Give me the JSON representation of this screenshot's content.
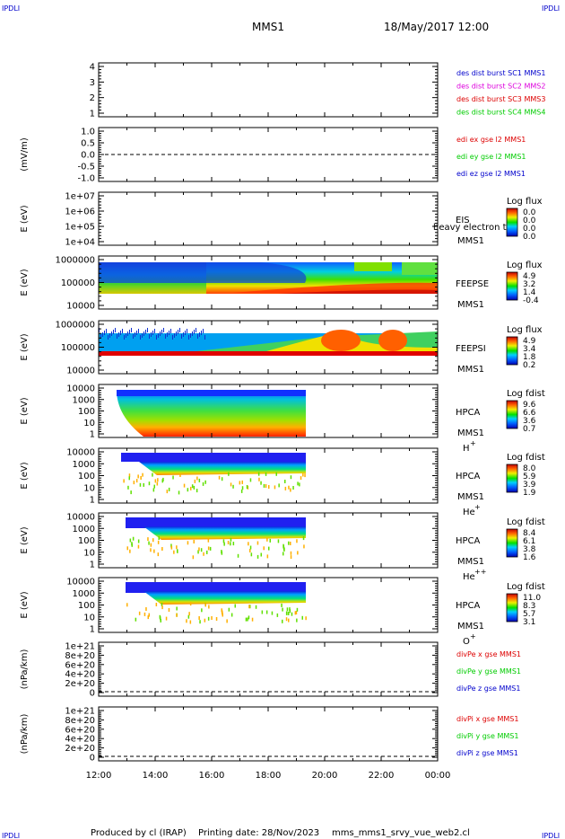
{
  "header": {
    "corner_tl": "IPDLI",
    "corner_tr": "IPDLI",
    "spacecraft": "MMS1",
    "datetime": "18/May/2017 12:00"
  },
  "footer": {
    "produced_by": "Produced by cl (IRAP)",
    "printing_date": "Printing date: 28/Nov/2023",
    "filename": "mms_mms1_srvy_vue_web2.cl",
    "corner_bl": "IPDLI",
    "corner_br": "IPDLI"
  },
  "x_ticks": [
    "12:00",
    "14:00",
    "16:00",
    "18:00",
    "20:00",
    "22:00",
    "00:00"
  ],
  "colors": {
    "red": "#dd0000",
    "magenta": "#dd00dd",
    "green": "#00cc00",
    "blue": "#0000cc"
  },
  "chart_data": [
    {
      "type": "line",
      "id": "bursts",
      "yticks": [
        "4",
        "3",
        "2",
        "1"
      ],
      "ylabel": "",
      "legend": [
        {
          "text": "des dist burst SC1 MMS1",
          "color": "blue"
        },
        {
          "text": "des dist burst SC2 MMS2",
          "color": "magenta"
        },
        {
          "text": "des dist burst SC3 MMS3",
          "color": "red"
        },
        {
          "text": "des dist burst SC4 MMS4",
          "color": "green"
        }
      ]
    },
    {
      "type": "line",
      "id": "edi",
      "yticks": [
        "1.0",
        "0.5",
        "0.0",
        "-0.5",
        "-1.0"
      ],
      "ylabel": "(mV/m)",
      "legend": [
        {
          "text": "edi ex gse l2 MMS1",
          "color": "red"
        },
        {
          "text": "edi ey gse l2 MMS1",
          "color": "green"
        },
        {
          "text": "edi ez gse l2 MMS1",
          "color": "blue"
        }
      ]
    },
    {
      "type": "heatmap",
      "id": "eis",
      "yticks": [
        "1e+07",
        "1e+06",
        "1e+05",
        "1e+04"
      ],
      "ylabel": "E (eV)",
      "label1": "EIS",
      "label2": "MMS1",
      "overlay": "heavy electron to",
      "cb_title": "Log flux",
      "cb_values": [
        "0.0",
        "0.0",
        "0.0",
        "0.0"
      ]
    },
    {
      "type": "heatmap",
      "id": "feepse",
      "yticks": [
        "1000000",
        "100000",
        "10000"
      ],
      "ylabel": "E (eV)",
      "label1": "FEEPSE",
      "label2": "MMS1",
      "cb_title": "Log flux",
      "cb_values": [
        "4.9",
        "3.2",
        "1.4",
        "-0.4"
      ]
    },
    {
      "type": "heatmap",
      "id": "feepsi",
      "yticks": [
        "1000000",
        "100000",
        "10000"
      ],
      "ylabel": "E (eV)",
      "label1": "FEEPSI",
      "label2": "MMS1",
      "cb_title": "Log flux",
      "cb_values": [
        "4.9",
        "3.4",
        "1.8",
        "0.2"
      ]
    },
    {
      "type": "heatmap",
      "id": "hpca_h",
      "yticks": [
        "10000",
        "1000",
        "100",
        "10",
        "1"
      ],
      "ylabel": "E (eV)",
      "label1": "HPCA",
      "label2": "MMS1",
      "species": "H",
      "species_sup": "+",
      "cb_title": "Log fdist",
      "cb_values": [
        "9.6",
        "6.6",
        "3.6",
        "0.7"
      ]
    },
    {
      "type": "heatmap",
      "id": "hpca_he",
      "yticks": [
        "10000",
        "1000",
        "100",
        "10",
        "1"
      ],
      "ylabel": "E (eV)",
      "label1": "HPCA",
      "label2": "MMS1",
      "species": "He",
      "species_sup": "+",
      "cb_title": "Log fdist",
      "cb_values": [
        "8.0",
        "5.9",
        "3.9",
        "1.9"
      ]
    },
    {
      "type": "heatmap",
      "id": "hpca_hepp",
      "yticks": [
        "10000",
        "1000",
        "100",
        "10",
        "1"
      ],
      "ylabel": "E (eV)",
      "label1": "HPCA",
      "label2": "MMS1",
      "species": "He",
      "species_sup": "++",
      "cb_title": "Log fdist",
      "cb_values": [
        "8.4",
        "6.1",
        "3.8",
        "1.6"
      ]
    },
    {
      "type": "heatmap",
      "id": "hpca_o",
      "yticks": [
        "10000",
        "1000",
        "100",
        "10",
        "1"
      ],
      "ylabel": "E (eV)",
      "label1": "HPCA",
      "label2": "MMS1",
      "species": "O",
      "species_sup": "+",
      "cb_title": "Log fdist",
      "cb_values": [
        "11.0",
        "8.3",
        "5.7",
        "3.1"
      ]
    },
    {
      "type": "line",
      "id": "divpe",
      "yticks": [
        "1e+21",
        "8e+20",
        "6e+20",
        "4e+20",
        "2e+20",
        "0"
      ],
      "ylabel": "(nPa/km)",
      "legend": [
        {
          "text": "divPe x gse MMS1",
          "color": "red"
        },
        {
          "text": "divPe y gse MMS1",
          "color": "green"
        },
        {
          "text": "divPe z gse MMS1",
          "color": "blue"
        }
      ]
    },
    {
      "type": "line",
      "id": "divpi",
      "yticks": [
        "1e+21",
        "8e+20",
        "6e+20",
        "4e+20",
        "2e+20",
        "0"
      ],
      "ylabel": "(nPa/km)",
      "legend": [
        {
          "text": "divPi x gse MMS1",
          "color": "red"
        },
        {
          "text": "divPi y gse MMS1",
          "color": "green"
        },
        {
          "text": "divPi z gse MMS1",
          "color": "blue"
        }
      ]
    }
  ]
}
